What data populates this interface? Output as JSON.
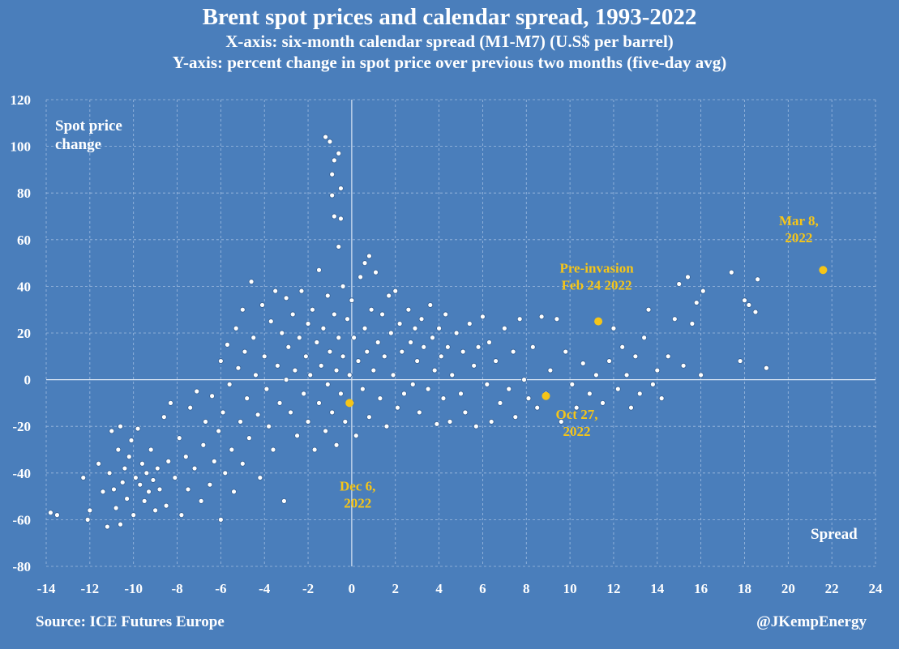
{
  "title": "Brent spot prices and calendar spread, 1993-2022",
  "subtitle_x": "X-axis: six-month calendar spread (M1-M7)  (U.S$ per barrel)",
  "subtitle_y": "Y-axis: percent change in spot price over previous two months (five-day avg)",
  "source": "Source: ICE Futures Europe",
  "credit": "@JKempEnergy",
  "colors": {
    "background": "#4a7ebb",
    "points": "#ffffff",
    "highlight": "#f5c518",
    "grid": "#9fbce0"
  },
  "chart_data": {
    "type": "scatter",
    "xlim": [
      -14,
      24
    ],
    "ylim": [
      -80,
      120
    ],
    "xticks": [
      -14,
      -12,
      -10,
      -8,
      -6,
      -4,
      -2,
      0,
      2,
      4,
      6,
      8,
      10,
      12,
      14,
      16,
      18,
      20,
      22,
      24
    ],
    "yticks": [
      -80,
      -60,
      -40,
      -20,
      0,
      20,
      40,
      60,
      80,
      100,
      120
    ],
    "grid": true,
    "axis_labels": {
      "y": "Spot price change",
      "x": "Spread"
    },
    "series": [
      {
        "values_note": "",
        "points": [
          [
            -13.8,
            -57
          ],
          [
            -13.5,
            -58
          ],
          [
            -12.3,
            -42
          ],
          [
            -12.1,
            -60
          ],
          [
            -12.0,
            -56
          ],
          [
            -11.6,
            -36
          ],
          [
            -11.4,
            -48
          ],
          [
            -11.2,
            -63
          ],
          [
            -11.1,
            -40
          ],
          [
            -11.0,
            -22
          ],
          [
            -10.9,
            -47
          ],
          [
            -10.8,
            -55
          ],
          [
            -10.7,
            -30
          ],
          [
            -10.6,
            -20
          ],
          [
            -10.6,
            -62
          ],
          [
            -10.5,
            -44
          ],
          [
            -10.4,
            -38
          ],
          [
            -10.3,
            -51
          ],
          [
            -10.2,
            -33
          ],
          [
            -10.1,
            -26
          ],
          [
            -10.0,
            -58
          ],
          [
            -9.9,
            -42
          ],
          [
            -9.8,
            -21
          ],
          [
            -9.7,
            -45
          ],
          [
            -9.6,
            -36
          ],
          [
            -9.5,
            -52
          ],
          [
            -9.4,
            -40
          ],
          [
            -9.3,
            -48
          ],
          [
            -9.2,
            -30
          ],
          [
            -9.1,
            -43
          ],
          [
            -9.0,
            -56
          ],
          [
            -8.9,
            -38
          ],
          [
            -8.8,
            -47
          ],
          [
            -8.6,
            -16
          ],
          [
            -8.5,
            -54
          ],
          [
            -8.4,
            -35
          ],
          [
            -8.3,
            -10
          ],
          [
            -8.1,
            -42
          ],
          [
            -7.9,
            -25
          ],
          [
            -7.8,
            -58
          ],
          [
            -7.6,
            -33
          ],
          [
            -7.5,
            -47
          ],
          [
            -7.4,
            -12
          ],
          [
            -7.2,
            -38
          ],
          [
            -7.1,
            -5
          ],
          [
            -6.9,
            -52
          ],
          [
            -6.8,
            -28
          ],
          [
            -6.7,
            -18
          ],
          [
            -6.5,
            -45
          ],
          [
            -6.4,
            -7
          ],
          [
            -6.3,
            -35
          ],
          [
            -6.1,
            -22
          ],
          [
            -6.0,
            -60
          ],
          [
            -6.0,
            8
          ],
          [
            -5.9,
            -14
          ],
          [
            -5.8,
            -40
          ],
          [
            -5.7,
            15
          ],
          [
            -5.6,
            -2
          ],
          [
            -5.5,
            -30
          ],
          [
            -5.4,
            -48
          ],
          [
            -5.3,
            22
          ],
          [
            -5.2,
            5
          ],
          [
            -5.1,
            -18
          ],
          [
            -5.0,
            -36
          ],
          [
            -5.0,
            30
          ],
          [
            -4.9,
            12
          ],
          [
            -4.8,
            -8
          ],
          [
            -4.7,
            -25
          ],
          [
            -4.6,
            42
          ],
          [
            -4.5,
            18
          ],
          [
            -4.4,
            2
          ],
          [
            -4.3,
            -15
          ],
          [
            -4.2,
            -42
          ],
          [
            -4.1,
            32
          ],
          [
            -4.0,
            10
          ],
          [
            -3.9,
            -4
          ],
          [
            -3.8,
            -20
          ],
          [
            -3.7,
            25
          ],
          [
            -3.6,
            -30
          ],
          [
            -3.5,
            38
          ],
          [
            -3.4,
            6
          ],
          [
            -3.3,
            -10
          ],
          [
            -3.2,
            20
          ],
          [
            -3.1,
            -52
          ],
          [
            -3.0,
            35
          ],
          [
            -3.0,
            0
          ],
          [
            -2.9,
            14
          ],
          [
            -2.8,
            -14
          ],
          [
            -2.7,
            28
          ],
          [
            -2.6,
            4
          ],
          [
            -2.5,
            -24
          ],
          [
            -2.4,
            18
          ],
          [
            -2.3,
            38
          ],
          [
            -2.2,
            -6
          ],
          [
            -2.1,
            10
          ],
          [
            -2.0,
            24
          ],
          [
            -2.0,
            -18
          ],
          [
            -1.9,
            2
          ],
          [
            -1.8,
            30
          ],
          [
            -1.7,
            -30
          ],
          [
            -1.6,
            16
          ],
          [
            -1.5,
            47
          ],
          [
            -1.5,
            -10
          ],
          [
            -1.4,
            6
          ],
          [
            -1.3,
            22
          ],
          [
            -1.2,
            -22
          ],
          [
            -1.2,
            104
          ],
          [
            -1.1,
            36
          ],
          [
            -1.1,
            -2
          ],
          [
            -1.0,
            102
          ],
          [
            -1.0,
            12
          ],
          [
            -0.9,
            -14
          ],
          [
            -0.9,
            88
          ],
          [
            -0.9,
            79
          ],
          [
            -0.8,
            94
          ],
          [
            -0.8,
            28
          ],
          [
            -0.8,
            70
          ],
          [
            -0.7,
            4
          ],
          [
            -0.7,
            -28
          ],
          [
            -0.6,
            97
          ],
          [
            -0.6,
            18
          ],
          [
            -0.6,
            57
          ],
          [
            -0.5,
            82
          ],
          [
            -0.5,
            -6
          ],
          [
            -0.5,
            69
          ],
          [
            -0.4,
            40
          ],
          [
            -0.4,
            10
          ],
          [
            -0.3,
            -18
          ],
          [
            -0.2,
            26
          ],
          [
            -0.1,
            2
          ],
          [
            0.0,
            -10
          ],
          [
            0.0,
            34
          ],
          [
            0.1,
            18
          ],
          [
            0.2,
            -24
          ],
          [
            0.3,
            8
          ],
          [
            0.4,
            44
          ],
          [
            0.5,
            -4
          ],
          [
            0.6,
            50
          ],
          [
            0.6,
            22
          ],
          [
            0.7,
            12
          ],
          [
            0.8,
            53
          ],
          [
            0.8,
            -16
          ],
          [
            0.9,
            30
          ],
          [
            1.0,
            4
          ],
          [
            1.1,
            46
          ],
          [
            1.2,
            16
          ],
          [
            1.3,
            -8
          ],
          [
            1.4,
            28
          ],
          [
            1.5,
            10
          ],
          [
            1.6,
            -20
          ],
          [
            1.7,
            36
          ],
          [
            1.8,
            20
          ],
          [
            1.9,
            2
          ],
          [
            2.0,
            38
          ],
          [
            2.1,
            -12
          ],
          [
            2.2,
            24
          ],
          [
            2.3,
            12
          ],
          [
            2.4,
            -6
          ],
          [
            2.6,
            30
          ],
          [
            2.7,
            16
          ],
          [
            2.8,
            -2
          ],
          [
            2.9,
            22
          ],
          [
            3.0,
            8
          ],
          [
            3.1,
            -14
          ],
          [
            3.2,
            26
          ],
          [
            3.3,
            14
          ],
          [
            3.5,
            -4
          ],
          [
            3.6,
            32
          ],
          [
            3.7,
            18
          ],
          [
            3.8,
            4
          ],
          [
            3.9,
            -19
          ],
          [
            4.0,
            22
          ],
          [
            4.1,
            10
          ],
          [
            4.2,
            -8
          ],
          [
            4.3,
            28
          ],
          [
            4.4,
            14
          ],
          [
            4.5,
            -18
          ],
          [
            4.6,
            2
          ],
          [
            4.8,
            20
          ],
          [
            5.0,
            -6
          ],
          [
            5.1,
            12
          ],
          [
            5.2,
            -14
          ],
          [
            5.4,
            24
          ],
          [
            5.6,
            6
          ],
          [
            5.7,
            -20
          ],
          [
            5.8,
            14
          ],
          [
            6.0,
            27
          ],
          [
            6.2,
            -2
          ],
          [
            6.3,
            16
          ],
          [
            6.4,
            -18
          ],
          [
            6.6,
            8
          ],
          [
            6.8,
            -10
          ],
          [
            7.0,
            22
          ],
          [
            7.2,
            -4
          ],
          [
            7.4,
            12
          ],
          [
            7.5,
            -16
          ],
          [
            7.7,
            26
          ],
          [
            7.9,
            0
          ],
          [
            8.1,
            -8
          ],
          [
            8.3,
            14
          ],
          [
            8.5,
            -12
          ],
          [
            8.7,
            27
          ],
          [
            8.9,
            -6
          ],
          [
            9.1,
            4
          ],
          [
            9.4,
            26
          ],
          [
            9.6,
            -18
          ],
          [
            9.8,
            12
          ],
          [
            10.1,
            -2
          ],
          [
            10.3,
            -12
          ],
          [
            10.6,
            7
          ],
          [
            10.9,
            -6
          ],
          [
            11.2,
            2
          ],
          [
            11.5,
            -10
          ],
          [
            11.8,
            8
          ],
          [
            12.0,
            22
          ],
          [
            12.2,
            -4
          ],
          [
            12.4,
            14
          ],
          [
            12.6,
            2
          ],
          [
            12.8,
            -12
          ],
          [
            13.0,
            10
          ],
          [
            13.2,
            -6
          ],
          [
            13.4,
            18
          ],
          [
            13.6,
            30
          ],
          [
            13.8,
            -2
          ],
          [
            14.0,
            4
          ],
          [
            14.2,
            -8
          ],
          [
            14.5,
            10
          ],
          [
            14.8,
            26
          ],
          [
            15.0,
            41
          ],
          [
            15.2,
            6
          ],
          [
            15.4,
            44
          ],
          [
            15.6,
            24
          ],
          [
            15.8,
            33
          ],
          [
            16.0,
            2
          ],
          [
            16.1,
            38
          ],
          [
            17.4,
            46
          ],
          [
            17.8,
            8
          ],
          [
            18.0,
            34
          ],
          [
            18.2,
            32
          ],
          [
            18.5,
            29
          ],
          [
            18.6,
            43
          ],
          [
            19.0,
            5
          ]
        ]
      }
    ],
    "highlights": [
      {
        "label": "Dec 6,\n2022",
        "x": -0.1,
        "y": -10
      },
      {
        "label": "Oct 27,\n2022",
        "x": 8.9,
        "y": -7
      },
      {
        "label": "Pre-invasion\nFeb 24 2022",
        "x": 11.3,
        "y": 25
      },
      {
        "label": "Mar 8,\n2022",
        "x": 21.6,
        "y": 47
      }
    ]
  }
}
